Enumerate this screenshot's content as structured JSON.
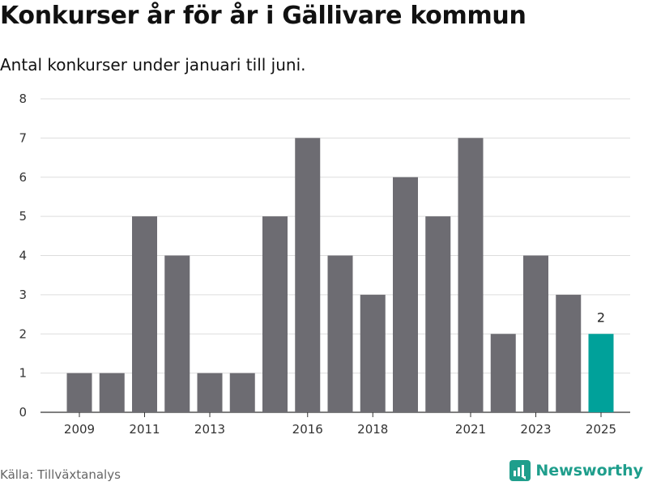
{
  "chart_data": {
    "type": "bar",
    "title": "Konkurser år för år i Gällivare kommun",
    "subtitle": "Antal konkurser under januari till juni.",
    "categories": [
      "2009",
      "2010",
      "2011",
      "2012",
      "2013",
      "2014",
      "2015",
      "2016",
      "2017",
      "2018",
      "2019",
      "2020",
      "2021",
      "2022",
      "2023",
      "2024",
      "2025"
    ],
    "values": [
      1,
      1,
      5,
      4,
      1,
      1,
      5,
      7,
      4,
      3,
      6,
      5,
      7,
      2,
      4,
      3,
      2
    ],
    "x_tick_labels": [
      "2009",
      "2011",
      "2013",
      "2016",
      "2018",
      "2021",
      "2023",
      "2025"
    ],
    "ylim": [
      0,
      8
    ],
    "y_ticks": [
      0,
      1,
      2,
      3,
      4,
      5,
      6,
      7,
      8
    ],
    "grid": true,
    "highlight": {
      "category": "2025",
      "label": "2"
    },
    "colors": {
      "bar": "#6d6c72",
      "highlight": "#00a19a",
      "grid": "#dddddd",
      "axis": "#333333"
    }
  },
  "footer": {
    "source": "Källa: Tillväxtanalys",
    "brand": "Newsworthy",
    "brand_icon": "newsworthy-logo-icon"
  }
}
